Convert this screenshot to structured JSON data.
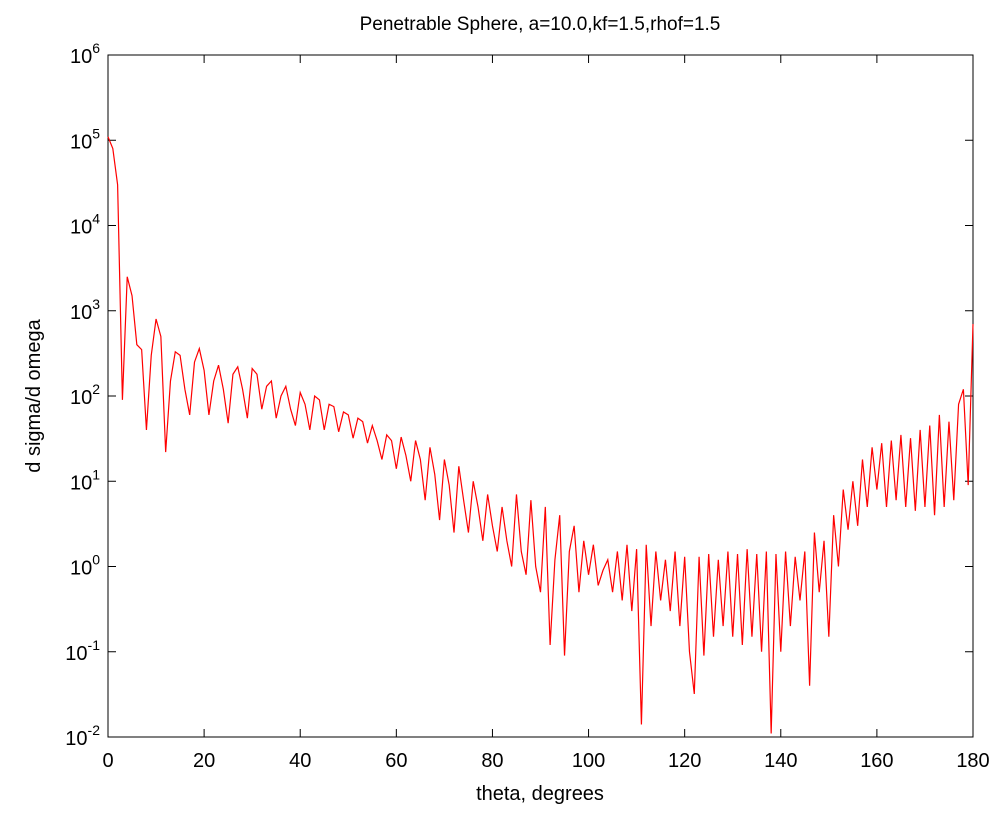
{
  "chart_data": {
    "type": "line",
    "title": "Penetrable Sphere, a=10.0,kf=1.5,rhof=1.5",
    "xlabel": "theta, degrees",
    "ylabel": "d sigma/d omega",
    "log_y": true,
    "xlim": [
      0,
      180
    ],
    "xticks": [
      0,
      20,
      40,
      60,
      80,
      100,
      120,
      140,
      160,
      180
    ],
    "ylim": [
      0.01,
      1000000
    ],
    "yticks": [
      {
        "value": 0.01,
        "label": "10^-2"
      },
      {
        "value": 0.1,
        "label": "10^-1"
      },
      {
        "value": 1,
        "label": "10^0"
      },
      {
        "value": 10,
        "label": "10^1"
      },
      {
        "value": 100,
        "label": "10^2"
      },
      {
        "value": 1000,
        "label": "10^3"
      },
      {
        "value": 10000,
        "label": "10^4"
      },
      {
        "value": 100000,
        "label": "10^5"
      },
      {
        "value": 1000000,
        "label": "10^6"
      }
    ],
    "x": [
      0,
      1,
      2,
      3,
      4,
      5,
      6,
      7,
      8,
      9,
      10,
      11,
      12,
      13,
      14,
      15,
      16,
      17,
      18,
      19,
      20,
      21,
      22,
      23,
      24,
      25,
      26,
      27,
      28,
      29,
      30,
      31,
      32,
      33,
      34,
      35,
      36,
      37,
      38,
      39,
      40,
      41,
      42,
      43,
      44,
      45,
      46,
      47,
      48,
      49,
      50,
      51,
      52,
      53,
      54,
      55,
      56,
      57,
      58,
      59,
      60,
      61,
      62,
      63,
      64,
      65,
      66,
      67,
      68,
      69,
      70,
      71,
      72,
      73,
      74,
      75,
      76,
      77,
      78,
      79,
      80,
      81,
      82,
      83,
      84,
      85,
      86,
      87,
      88,
      89,
      90,
      91,
      92,
      93,
      94,
      95,
      96,
      97,
      98,
      99,
      100,
      101,
      102,
      103,
      104,
      105,
      106,
      107,
      108,
      109,
      110,
      111,
      112,
      113,
      114,
      115,
      116,
      117,
      118,
      119,
      120,
      121,
      122,
      123,
      124,
      125,
      126,
      127,
      128,
      129,
      130,
      131,
      132,
      133,
      134,
      135,
      136,
      137,
      138,
      139,
      140,
      141,
      142,
      143,
      144,
      145,
      146,
      147,
      148,
      149,
      150,
      151,
      152,
      153,
      154,
      155,
      156,
      157,
      158,
      159,
      160,
      161,
      162,
      163,
      164,
      165,
      166,
      167,
      168,
      169,
      170,
      171,
      172,
      173,
      174,
      175,
      176,
      177,
      178,
      179,
      180
    ],
    "series": [
      {
        "color": "#ff0000",
        "values": [
          110000,
          80000,
          30000,
          90,
          2500,
          1500,
          400,
          350,
          40,
          300,
          800,
          500,
          22,
          150,
          330,
          300,
          120,
          60,
          250,
          360,
          200,
          60,
          150,
          230,
          120,
          48,
          180,
          220,
          120,
          55,
          210,
          180,
          70,
          130,
          150,
          55,
          100,
          130,
          70,
          45,
          110,
          80,
          40,
          100,
          90,
          40,
          80,
          75,
          38,
          65,
          60,
          32,
          55,
          50,
          28,
          45,
          30,
          18,
          35,
          30,
          14,
          33,
          20,
          10,
          30,
          18,
          6,
          25,
          12,
          3.5,
          18,
          9,
          2.5,
          15,
          6,
          2.5,
          10,
          5,
          2,
          7,
          3,
          1.5,
          5,
          2,
          1,
          7,
          1.5,
          0.8,
          6,
          1,
          0.5,
          5,
          0.12,
          1.2,
          4,
          0.09,
          1.5,
          3,
          0.5,
          2,
          0.8,
          1.8,
          0.6,
          0.9,
          1.2,
          0.5,
          1.5,
          0.4,
          1.8,
          0.3,
          1.6,
          0.014,
          1.8,
          0.2,
          1.5,
          0.4,
          1.2,
          0.3,
          1.5,
          0.2,
          1.3,
          0.1,
          0.032,
          1.3,
          0.09,
          1.4,
          0.15,
          1.2,
          0.2,
          1.5,
          0.15,
          1.4,
          0.12,
          1.6,
          0.15,
          1.4,
          0.1,
          1.5,
          0.011,
          1.4,
          0.1,
          1.5,
          0.2,
          1.3,
          0.4,
          1.5,
          0.04,
          2.5,
          0.5,
          2,
          0.15,
          4,
          1,
          8,
          2.7,
          10,
          3,
          18,
          5,
          25,
          8,
          28,
          5,
          30,
          6,
          35,
          5,
          32,
          4.5,
          40,
          5,
          45,
          4,
          60,
          5,
          50,
          6,
          80,
          120,
          9,
          700
        ]
      }
    ]
  }
}
